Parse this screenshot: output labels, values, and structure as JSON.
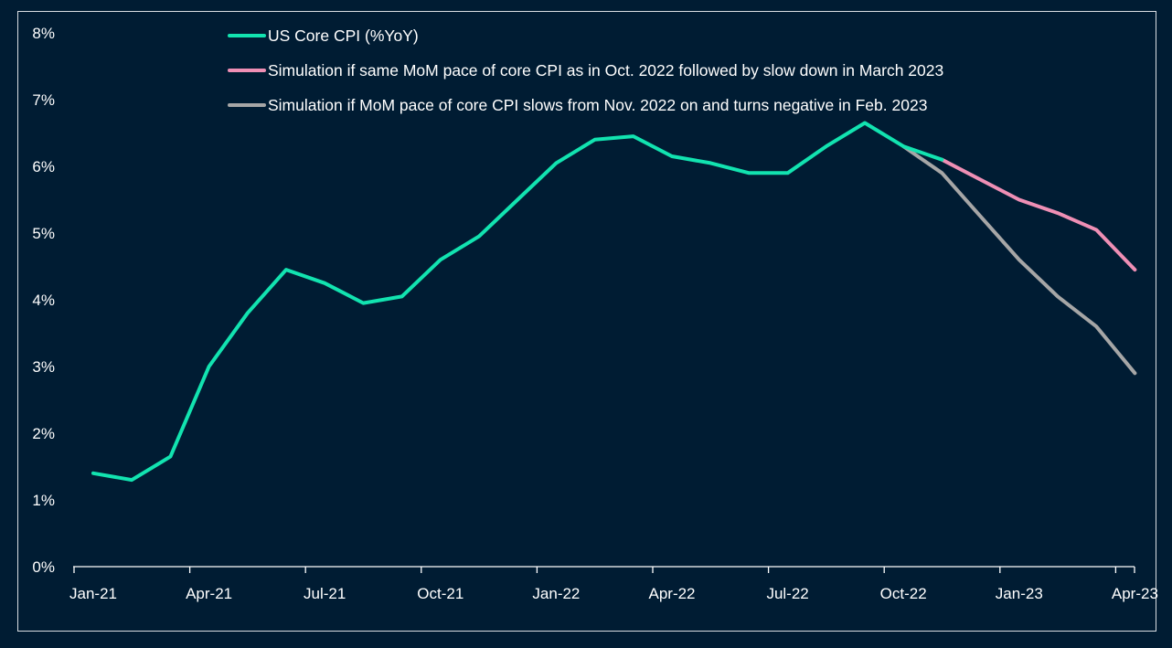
{
  "chart_data": {
    "type": "line",
    "title": "",
    "xlabel": "",
    "ylabel": "",
    "ylim": [
      0,
      8
    ],
    "y_ticks": [
      0,
      1,
      2,
      3,
      4,
      5,
      6,
      7,
      8
    ],
    "y_tick_labels": [
      "0%",
      "1%",
      "2%",
      "3%",
      "4%",
      "5%",
      "6%",
      "7%",
      "8%"
    ],
    "x": [
      "Jan-21",
      "Feb-21",
      "Mar-21",
      "Apr-21",
      "May-21",
      "Jun-21",
      "Jul-21",
      "Aug-21",
      "Sep-21",
      "Oct-21",
      "Nov-21",
      "Dec-21",
      "Jan-22",
      "Feb-22",
      "Mar-22",
      "Apr-22",
      "May-22",
      "Jun-22",
      "Jul-22",
      "Aug-22",
      "Sep-22",
      "Oct-22",
      "Nov-22",
      "Dec-22",
      "Jan-23",
      "Feb-23",
      "Mar-23",
      "Apr-23"
    ],
    "x_tick_labels": [
      "Jan-21",
      "Apr-21",
      "Jul-21",
      "Oct-21",
      "Jan-22",
      "Apr-22",
      "Jul-22",
      "Oct-22",
      "Jan-23",
      "Apr-23"
    ],
    "x_tick_indices": [
      0,
      3,
      6,
      9,
      12,
      15,
      18,
      21,
      24,
      27
    ],
    "legend_position": "top",
    "series": [
      {
        "name": "US Core CPI (%YoY)",
        "color": "#12e3b0",
        "values": [
          1.4,
          1.3,
          1.65,
          3.0,
          3.8,
          4.45,
          4.25,
          3.95,
          4.05,
          4.6,
          4.95,
          5.5,
          6.05,
          6.4,
          6.45,
          6.15,
          6.05,
          5.9,
          5.9,
          6.3,
          6.65,
          6.3,
          6.1,
          null,
          null,
          null,
          null,
          null
        ]
      },
      {
        "name": "Simulation if same MoM pace of core CPI as in Oct. 2022 followed by slow down in March 2023",
        "color": "#ef8fb5",
        "values": [
          null,
          null,
          null,
          null,
          null,
          null,
          null,
          null,
          null,
          null,
          null,
          null,
          null,
          null,
          null,
          null,
          null,
          null,
          null,
          null,
          null,
          null,
          6.1,
          5.8,
          5.5,
          5.3,
          5.05,
          4.45
        ]
      },
      {
        "name": "Simulation if  MoM pace of core CPI slows from Nov. 2022 on and turns negative in Feb. 2023",
        "color": "#a6a6a6",
        "values": [
          null,
          null,
          null,
          null,
          null,
          null,
          null,
          null,
          null,
          null,
          null,
          null,
          null,
          null,
          null,
          null,
          null,
          null,
          null,
          null,
          null,
          6.3,
          5.9,
          5.25,
          4.6,
          4.05,
          3.6,
          2.9
        ]
      }
    ]
  }
}
